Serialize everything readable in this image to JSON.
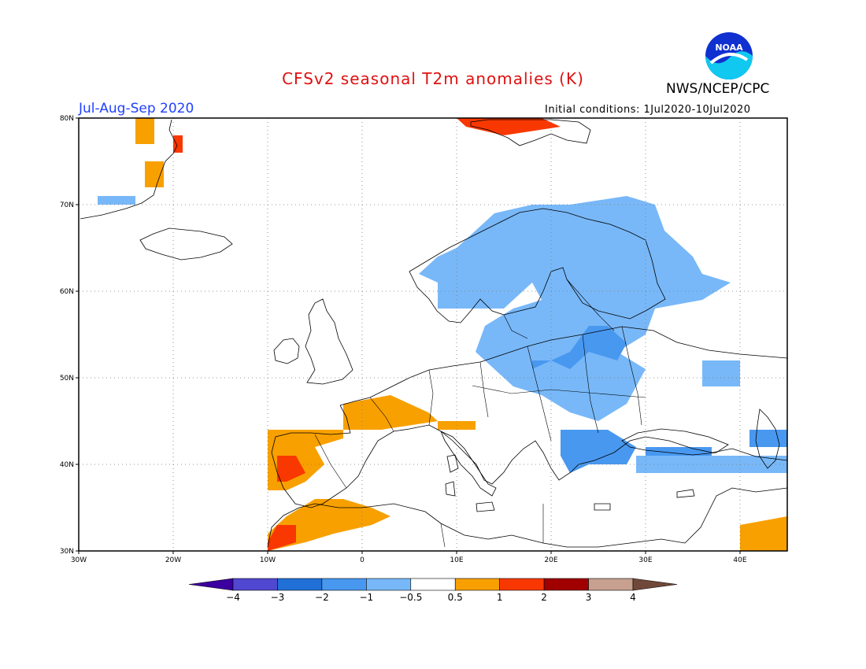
{
  "header": {
    "title": "CFSv2 seasonal T2m anomalies (K)",
    "org": "NWS/NCEP/CPC",
    "period": "Jul-Aug-Sep 2020",
    "initial_conditions": "Initial conditions: 1Jul2020-10Jul2020",
    "logo_text": "NOAA"
  },
  "map": {
    "lon_range": [
      -30,
      45
    ],
    "lat_range": [
      30,
      80
    ],
    "lon_ticks": [
      {
        "value": -30,
        "label": "30W"
      },
      {
        "value": -20,
        "label": "20W"
      },
      {
        "value": -10,
        "label": "10W"
      },
      {
        "value": 0,
        "label": "0"
      },
      {
        "value": 10,
        "label": "10E"
      },
      {
        "value": 20,
        "label": "20E"
      },
      {
        "value": 30,
        "label": "30E"
      },
      {
        "value": 40,
        "label": "40E"
      }
    ],
    "lat_ticks": [
      {
        "value": 30,
        "label": "30N"
      },
      {
        "value": 40,
        "label": "40N"
      },
      {
        "value": 50,
        "label": "50N"
      },
      {
        "value": 60,
        "label": "60N"
      },
      {
        "value": 70,
        "label": "70N"
      },
      {
        "value": 80,
        "label": "80N"
      }
    ],
    "grid": true,
    "anomaly_regions": [
      {
        "class": "-1 to -0.5",
        "color": "#78b8f8",
        "polygon": [
          [
            10,
            65
          ],
          [
            14,
            69
          ],
          [
            18,
            70
          ],
          [
            22,
            70
          ],
          [
            28,
            71
          ],
          [
            31,
            70
          ],
          [
            32,
            67
          ],
          [
            35,
            64
          ],
          [
            36,
            62
          ],
          [
            39,
            61
          ],
          [
            36,
            59
          ],
          [
            31,
            58
          ],
          [
            30,
            55
          ],
          [
            27,
            53
          ],
          [
            30,
            51
          ],
          [
            28,
            47
          ],
          [
            25,
            45
          ],
          [
            22,
            46
          ],
          [
            19,
            48
          ],
          [
            16,
            49
          ],
          [
            14,
            51
          ],
          [
            12,
            53
          ],
          [
            13,
            56
          ],
          [
            16,
            58
          ],
          [
            19,
            59
          ],
          [
            18,
            61
          ],
          [
            15,
            58
          ],
          [
            11,
            58
          ],
          [
            8,
            58
          ],
          [
            8,
            61
          ],
          [
            6,
            62
          ],
          [
            8,
            64
          ]
        ]
      },
      {
        "class": "-1 to -0.5",
        "color": "#78b8f8",
        "polygon": [
          [
            36,
            52
          ],
          [
            40,
            52
          ],
          [
            40,
            49
          ],
          [
            36,
            49
          ]
        ]
      },
      {
        "class": "-1 to -0.5",
        "color": "#78b8f8",
        "polygon": [
          [
            29,
            41
          ],
          [
            45,
            41
          ],
          [
            45,
            39
          ],
          [
            29,
            39
          ]
        ]
      },
      {
        "class": "-1 to -0.5",
        "color": "#78b8f8",
        "polygon": [
          [
            -28,
            71
          ],
          [
            -24,
            71
          ],
          [
            -24,
            70
          ],
          [
            -28,
            70
          ]
        ]
      },
      {
        "class": "-2 to -1",
        "color": "#4898f0",
        "polygon": [
          [
            18,
            51
          ],
          [
            20,
            52
          ],
          [
            22,
            51
          ],
          [
            24,
            53
          ],
          [
            27,
            52
          ],
          [
            28,
            54
          ],
          [
            26,
            56
          ],
          [
            24,
            56
          ],
          [
            22,
            53
          ],
          [
            20,
            52
          ],
          [
            18,
            52
          ]
        ]
      },
      {
        "class": "-2 to -1",
        "color": "#4898f0",
        "polygon": [
          [
            21,
            44
          ],
          [
            26,
            44
          ],
          [
            29,
            42
          ],
          [
            28,
            40
          ],
          [
            24,
            40
          ],
          [
            22,
            39
          ],
          [
            21,
            41
          ]
        ]
      },
      {
        "class": "-2 to -1",
        "color": "#4898f0",
        "polygon": [
          [
            30,
            42
          ],
          [
            37,
            42
          ],
          [
            37,
            41
          ],
          [
            30,
            41
          ]
        ]
      },
      {
        "class": "-2 to -1",
        "color": "#4898f0",
        "polygon": [
          [
            41,
            44
          ],
          [
            45,
            44
          ],
          [
            45,
            42
          ],
          [
            41,
            42
          ]
        ]
      },
      {
        "class": "0.5 to 1",
        "color": "#f8a000",
        "polygon": [
          [
            -2,
            47
          ],
          [
            3,
            48
          ],
          [
            5,
            47
          ],
          [
            7,
            46
          ],
          [
            8,
            45
          ],
          [
            2,
            44
          ],
          [
            -2,
            44
          ]
        ]
      },
      {
        "class": "0.5 to 1",
        "color": "#f8a000",
        "polygon": [
          [
            -10,
            44
          ],
          [
            -2,
            44
          ],
          [
            -2,
            43
          ],
          [
            -5,
            42
          ],
          [
            -4,
            40
          ],
          [
            -6,
            38
          ],
          [
            -8,
            37
          ],
          [
            -10,
            37
          ],
          [
            -10,
            40
          ]
        ]
      },
      {
        "class": "0.5 to 1",
        "color": "#f8a000",
        "polygon": [
          [
            -10,
            32
          ],
          [
            -8,
            34
          ],
          [
            -5,
            36
          ],
          [
            -2,
            36
          ],
          [
            1,
            35
          ],
          [
            3,
            34
          ],
          [
            1,
            33
          ],
          [
            -3,
            32
          ],
          [
            -6,
            31
          ],
          [
            -10,
            30
          ]
        ]
      },
      {
        "class": "0.5 to 1",
        "color": "#f8a000",
        "polygon": [
          [
            8,
            45
          ],
          [
            12,
            45
          ],
          [
            12,
            44
          ],
          [
            8,
            44
          ]
        ]
      },
      {
        "class": "0.5 to 1",
        "color": "#f8a000",
        "polygon": [
          [
            -24,
            80
          ],
          [
            -22,
            80
          ],
          [
            -22,
            77
          ],
          [
            -24,
            77
          ]
        ]
      },
      {
        "class": "0.5 to 1",
        "color": "#f8a000",
        "polygon": [
          [
            -23,
            75
          ],
          [
            -21,
            75
          ],
          [
            -21,
            72
          ],
          [
            -23,
            72
          ]
        ]
      },
      {
        "class": "0.5 to 1",
        "color": "#f8a000",
        "polygon": [
          [
            40,
            33
          ],
          [
            45,
            34
          ],
          [
            45,
            30
          ],
          [
            40,
            30
          ]
        ]
      },
      {
        "class": "1 to 2",
        "color": "#f83800",
        "polygon": [
          [
            -9,
            41
          ],
          [
            -7,
            41
          ],
          [
            -6,
            39
          ],
          [
            -8,
            38
          ],
          [
            -9,
            38
          ]
        ]
      },
      {
        "class": "1 to 2",
        "color": "#f83800",
        "polygon": [
          [
            -9,
            33
          ],
          [
            -7,
            33
          ],
          [
            -7,
            31
          ],
          [
            -10,
            30
          ],
          [
            -10,
            31
          ]
        ]
      },
      {
        "class": "1 to 2",
        "color": "#f83800",
        "polygon": [
          [
            10,
            80
          ],
          [
            19,
            80
          ],
          [
            21,
            79
          ],
          [
            15,
            78
          ],
          [
            11,
            79
          ]
        ]
      },
      {
        "class": "1 to 2",
        "color": "#f83800",
        "polygon": [
          [
            -20,
            78
          ],
          [
            -19,
            78
          ],
          [
            -19,
            76
          ],
          [
            -20,
            76
          ]
        ]
      }
    ]
  },
  "colorbar": {
    "colors": [
      "#3a00a0",
      "#5048d0",
      "#2070d8",
      "#4898f0",
      "#78b8f8",
      "#ffffff",
      "#f8a000",
      "#f83800",
      "#a00000",
      "#c8a090",
      "#70483a"
    ],
    "labels": [
      "-4",
      "-3",
      "-2",
      "-1",
      "-0.5",
      "0.5",
      "1",
      "2",
      "3",
      "4"
    ]
  }
}
